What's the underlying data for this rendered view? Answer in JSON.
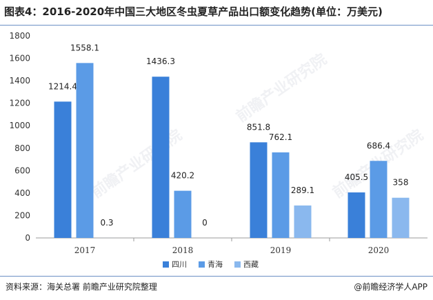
{
  "title": "图表4：2016-2020年中国三大地区冬虫夏草产品出口额变化趋势(单位：万美元)",
  "source": "资料来源：海关总署 前瞻产业研究院整理",
  "brand": "@前瞻经济学人APP",
  "watermark": "前瞻产业研究院",
  "chart_data": {
    "type": "bar",
    "title": "图表4：2016-2020年中国三大地区冬虫夏草产品出口额变化趋势(单位：万美元)",
    "xlabel": "",
    "ylabel": "",
    "categories": [
      "2017",
      "2018",
      "2019",
      "2020"
    ],
    "series": [
      {
        "name": "四川",
        "values": [
          1214.4,
          1436.3,
          851.8,
          405.5
        ],
        "labels": [
          "1214.4",
          "1436.3",
          "851.8",
          "405.5"
        ],
        "color": "#3a80d9"
      },
      {
        "name": "青海",
        "values": [
          1558.1,
          420.2,
          762.1,
          686.4
        ],
        "labels": [
          "1558.1",
          "420.2",
          "762.1",
          "686.4"
        ],
        "color": "#5b9be6"
      },
      {
        "name": "西藏",
        "values": [
          0.3,
          0,
          289.1,
          358
        ],
        "labels": [
          "0.3",
          "0",
          "289.1",
          "358"
        ],
        "color": "#8ab8ee"
      }
    ],
    "ylim": [
      0,
      1800
    ],
    "yticks": [
      "0",
      "200",
      "400",
      "600",
      "800",
      "1000",
      "1200",
      "1400",
      "1600",
      "1800"
    ],
    "grid": false,
    "legend": "bottom"
  }
}
